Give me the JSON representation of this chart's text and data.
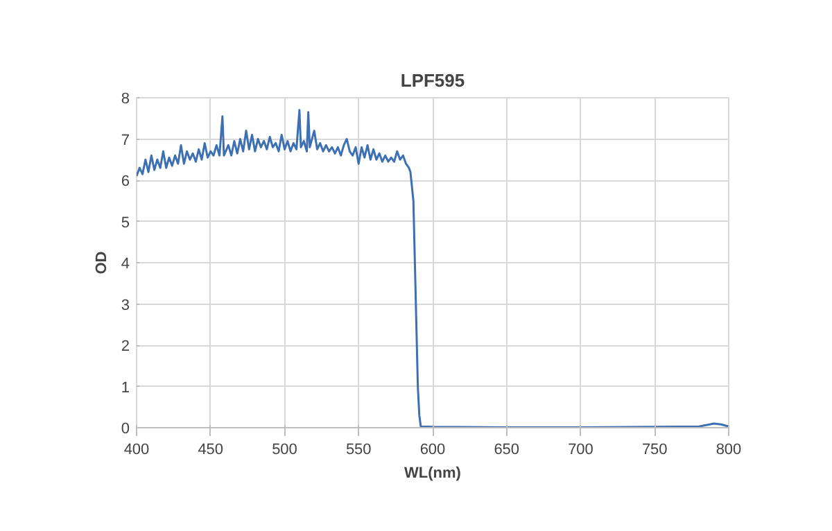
{
  "chart_data": {
    "type": "line",
    "title": "LPF595",
    "xlabel": "WL(nm)",
    "ylabel": "OD",
    "xlim": [
      400,
      800
    ],
    "xticks": [
      400,
      450,
      500,
      550,
      600,
      650,
      700,
      750,
      800
    ],
    "ylim": [
      0,
      8
    ],
    "yticks": [
      0,
      1,
      2,
      3,
      4,
      5,
      6,
      7,
      8
    ],
    "grid": true,
    "marker": "none",
    "line_style": "solid",
    "series": [
      {
        "color": "#3d6fb5",
        "x": [
          400,
          402,
          404,
          406,
          408,
          410,
          412,
          414,
          416,
          418,
          420,
          422,
          424,
          426,
          428,
          430,
          432,
          434,
          436,
          438,
          440,
          442,
          444,
          446,
          448,
          450,
          452,
          454,
          456,
          458,
          459,
          462,
          464,
          466,
          468,
          470,
          472,
          474,
          476,
          478,
          480,
          482,
          484,
          486,
          488,
          490,
          492,
          494,
          496,
          498,
          500,
          502,
          504,
          506,
          508,
          510,
          511,
          513,
          515,
          516,
          517,
          520,
          522,
          524,
          526,
          528,
          530,
          532,
          534,
          536,
          538,
          540,
          542,
          544,
          546,
          548,
          550,
          552,
          554,
          556,
          558,
          560,
          562,
          564,
          566,
          568,
          570,
          572,
          574,
          576,
          578,
          580,
          582,
          584,
          585,
          587,
          588,
          589,
          590,
          591,
          592,
          600,
          650,
          700,
          750,
          780,
          790,
          795,
          800
        ],
        "values": [
          6.1,
          6.3,
          6.15,
          6.5,
          6.2,
          6.6,
          6.25,
          6.5,
          6.3,
          6.7,
          6.3,
          6.55,
          6.35,
          6.6,
          6.4,
          6.85,
          6.4,
          6.7,
          6.5,
          6.65,
          6.45,
          6.75,
          6.5,
          6.9,
          6.55,
          6.7,
          6.6,
          6.85,
          6.6,
          7.55,
          6.6,
          6.85,
          6.6,
          6.95,
          6.65,
          7.0,
          6.7,
          7.2,
          6.75,
          7.1,
          6.7,
          7.0,
          6.8,
          6.95,
          6.75,
          7.05,
          6.8,
          6.9,
          6.7,
          7.1,
          6.75,
          6.95,
          6.7,
          6.9,
          6.75,
          7.7,
          6.8,
          6.95,
          6.7,
          7.65,
          6.8,
          7.2,
          6.75,
          6.9,
          6.7,
          6.85,
          6.7,
          6.8,
          6.65,
          6.8,
          6.6,
          6.85,
          7.0,
          6.7,
          6.6,
          6.8,
          6.4,
          6.8,
          6.55,
          6.85,
          6.5,
          6.75,
          6.5,
          6.65,
          6.45,
          6.6,
          6.45,
          6.55,
          6.45,
          6.7,
          6.5,
          6.6,
          6.4,
          6.3,
          6.2,
          5.5,
          4.0,
          2.5,
          1.0,
          0.3,
          0.03,
          0.02,
          0.01,
          0.01,
          0.02,
          0.03,
          0.1,
          0.08,
          0.03
        ]
      }
    ]
  }
}
